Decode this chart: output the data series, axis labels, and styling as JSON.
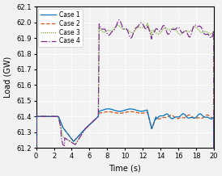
{
  "title": "",
  "xlabel": "Time (s)",
  "ylabel": "Load (GW)",
  "xlim": [
    0,
    20
  ],
  "ylim": [
    61.2,
    62.1
  ],
  "yticks": [
    61.2,
    61.3,
    61.4,
    61.5,
    61.6,
    61.7,
    61.8,
    61.9,
    62.0,
    62.1
  ],
  "xticks": [
    0,
    2,
    4,
    6,
    8,
    10,
    12,
    14,
    16,
    18,
    20
  ],
  "case1_color": "#0072BD",
  "case2_color": "#D95319",
  "case3_color": "#77AC30",
  "case4_color": "#7E2F8E",
  "legend_labels": [
    "Case 1",
    "Case 2",
    "Case 3",
    "Case 4"
  ],
  "bg_color": "#F2F2F2"
}
